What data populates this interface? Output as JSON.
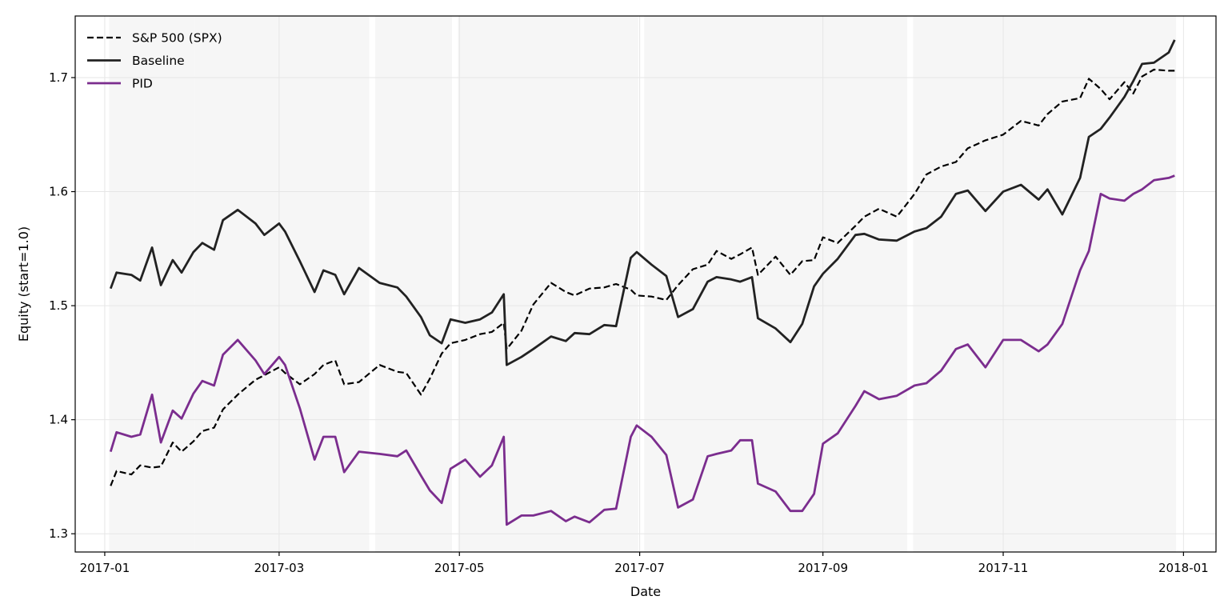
{
  "chart_data": {
    "type": "line",
    "xlabel": "Date",
    "ylabel": "Equity (start=1.0)",
    "x_range": [
      "2016-12-22",
      "2018-01-12"
    ],
    "ylim": [
      1.284,
      1.754
    ],
    "x_ticks": [
      "2017-01-01",
      "2017-03-01",
      "2017-05-01",
      "2017-07-01",
      "2017-09-01",
      "2017-11-01",
      "2018-01-01"
    ],
    "x_tick_labels": [
      "2017-01",
      "2017-03",
      "2017-05",
      "2017-07",
      "2017-09",
      "2017-11",
      "2018-01"
    ],
    "y_ticks": [
      1.3,
      1.4,
      1.5,
      1.6,
      1.7
    ],
    "y_tick_labels": [
      "1.3",
      "1.4",
      "1.5",
      "1.6",
      "1.7"
    ],
    "grid": true,
    "legend_position": "top-left",
    "shaded_month_bands": [
      [
        "2017-01-03",
        "2017-01-31"
      ],
      [
        "2017-02-01",
        "2017-02-28"
      ],
      [
        "2017-03-01",
        "2017-03-31"
      ],
      [
        "2017-04-03",
        "2017-04-28"
      ],
      [
        "2017-05-01",
        "2017-05-31"
      ],
      [
        "2017-06-01",
        "2017-06-30"
      ],
      [
        "2017-07-03",
        "2017-07-31"
      ],
      [
        "2017-08-01",
        "2017-08-31"
      ],
      [
        "2017-09-01",
        "2017-09-29"
      ],
      [
        "2017-10-02",
        "2017-10-31"
      ],
      [
        "2017-11-01",
        "2017-11-30"
      ],
      [
        "2017-12-01",
        "2017-12-29"
      ]
    ],
    "series": [
      {
        "name": "S&P 500 (SPX)",
        "color": "#000000",
        "style": "dashed",
        "x": [
          "2017-01-03",
          "2017-01-05",
          "2017-01-10",
          "2017-01-13",
          "2017-01-17",
          "2017-01-20",
          "2017-01-24",
          "2017-01-27",
          "2017-01-31",
          "2017-02-03",
          "2017-02-07",
          "2017-02-10",
          "2017-02-15",
          "2017-02-21",
          "2017-02-24",
          "2017-03-01",
          "2017-03-03",
          "2017-03-08",
          "2017-03-13",
          "2017-03-16",
          "2017-03-20",
          "2017-03-23",
          "2017-03-28",
          "2017-04-04",
          "2017-04-10",
          "2017-04-13",
          "2017-04-18",
          "2017-04-21",
          "2017-04-25",
          "2017-04-28",
          "2017-05-03",
          "2017-05-08",
          "2017-05-12",
          "2017-05-16",
          "2017-05-17",
          "2017-05-22",
          "2017-05-26",
          "2017-06-01",
          "2017-06-06",
          "2017-06-09",
          "2017-06-14",
          "2017-06-19",
          "2017-06-23",
          "2017-06-28",
          "2017-06-30",
          "2017-07-05",
          "2017-07-10",
          "2017-07-14",
          "2017-07-19",
          "2017-07-24",
          "2017-07-27",
          "2017-08-01",
          "2017-08-04",
          "2017-08-08",
          "2017-08-10",
          "2017-08-16",
          "2017-08-21",
          "2017-08-25",
          "2017-08-29",
          "2017-09-01",
          "2017-09-06",
          "2017-09-12",
          "2017-09-15",
          "2017-09-20",
          "2017-09-26",
          "2017-10-02",
          "2017-10-06",
          "2017-10-11",
          "2017-10-16",
          "2017-10-20",
          "2017-10-26",
          "2017-11-01",
          "2017-11-07",
          "2017-11-13",
          "2017-11-16",
          "2017-11-21",
          "2017-11-27",
          "2017-11-30",
          "2017-12-04",
          "2017-12-07",
          "2017-12-12",
          "2017-12-15",
          "2017-12-18",
          "2017-12-22",
          "2017-12-27",
          "2017-12-29"
        ],
        "values": [
          1.342,
          1.355,
          1.352,
          1.36,
          1.358,
          1.359,
          1.38,
          1.372,
          1.381,
          1.39,
          1.393,
          1.409,
          1.422,
          1.435,
          1.439,
          1.446,
          1.441,
          1.431,
          1.44,
          1.448,
          1.452,
          1.431,
          1.433,
          1.448,
          1.442,
          1.441,
          1.422,
          1.436,
          1.458,
          1.467,
          1.47,
          1.475,
          1.477,
          1.485,
          1.462,
          1.478,
          1.501,
          1.52,
          1.512,
          1.509,
          1.515,
          1.516,
          1.519,
          1.514,
          1.509,
          1.508,
          1.505,
          1.518,
          1.532,
          1.536,
          1.548,
          1.541,
          1.545,
          1.551,
          1.527,
          1.543,
          1.527,
          1.539,
          1.54,
          1.56,
          1.555,
          1.57,
          1.578,
          1.585,
          1.578,
          1.598,
          1.615,
          1.622,
          1.626,
          1.638,
          1.645,
          1.65,
          1.662,
          1.658,
          1.668,
          1.679,
          1.682,
          1.699,
          1.69,
          1.681,
          1.696,
          1.686,
          1.701,
          1.707,
          1.706,
          1.706
        ]
      },
      {
        "name": "Baseline",
        "color": "#222222",
        "style": "solid",
        "x": [
          "2017-01-03",
          "2017-01-05",
          "2017-01-10",
          "2017-01-13",
          "2017-01-17",
          "2017-01-20",
          "2017-01-24",
          "2017-01-27",
          "2017-01-31",
          "2017-02-03",
          "2017-02-07",
          "2017-02-10",
          "2017-02-15",
          "2017-02-21",
          "2017-02-24",
          "2017-03-01",
          "2017-03-03",
          "2017-03-08",
          "2017-03-13",
          "2017-03-16",
          "2017-03-20",
          "2017-03-23",
          "2017-03-28",
          "2017-04-04",
          "2017-04-10",
          "2017-04-13",
          "2017-04-18",
          "2017-04-21",
          "2017-04-25",
          "2017-04-28",
          "2017-05-03",
          "2017-05-08",
          "2017-05-12",
          "2017-05-16",
          "2017-05-17",
          "2017-05-22",
          "2017-05-26",
          "2017-06-01",
          "2017-06-06",
          "2017-06-09",
          "2017-06-14",
          "2017-06-19",
          "2017-06-23",
          "2017-06-28",
          "2017-06-30",
          "2017-07-05",
          "2017-07-10",
          "2017-07-14",
          "2017-07-19",
          "2017-07-24",
          "2017-07-27",
          "2017-08-01",
          "2017-08-04",
          "2017-08-08",
          "2017-08-10",
          "2017-08-16",
          "2017-08-21",
          "2017-08-25",
          "2017-08-29",
          "2017-09-01",
          "2017-09-06",
          "2017-09-12",
          "2017-09-15",
          "2017-09-20",
          "2017-09-26",
          "2017-10-02",
          "2017-10-06",
          "2017-10-11",
          "2017-10-16",
          "2017-10-20",
          "2017-10-26",
          "2017-11-01",
          "2017-11-07",
          "2017-11-13",
          "2017-11-16",
          "2017-11-21",
          "2017-11-27",
          "2017-11-30",
          "2017-12-04",
          "2017-12-07",
          "2017-12-12",
          "2017-12-15",
          "2017-12-18",
          "2017-12-22",
          "2017-12-27",
          "2017-12-29"
        ],
        "values": [
          1.515,
          1.529,
          1.527,
          1.522,
          1.551,
          1.518,
          1.54,
          1.529,
          1.547,
          1.555,
          1.549,
          1.575,
          1.584,
          1.572,
          1.562,
          1.572,
          1.565,
          1.539,
          1.512,
          1.531,
          1.527,
          1.51,
          1.533,
          1.52,
          1.516,
          1.508,
          1.49,
          1.474,
          1.467,
          1.488,
          1.485,
          1.488,
          1.494,
          1.51,
          1.448,
          1.455,
          1.462,
          1.473,
          1.469,
          1.476,
          1.475,
          1.483,
          1.482,
          1.542,
          1.547,
          1.536,
          1.526,
          1.49,
          1.497,
          1.521,
          1.525,
          1.523,
          1.521,
          1.525,
          1.489,
          1.48,
          1.468,
          1.484,
          1.517,
          1.528,
          1.541,
          1.562,
          1.563,
          1.558,
          1.557,
          1.565,
          1.568,
          1.578,
          1.598,
          1.601,
          1.583,
          1.6,
          1.606,
          1.593,
          1.602,
          1.58,
          1.612,
          1.648,
          1.655,
          1.665,
          1.683,
          1.697,
          1.712,
          1.713,
          1.722,
          1.733
        ]
      },
      {
        "name": "PID",
        "color": "#7b2d8e",
        "style": "solid",
        "x": [
          "2017-01-03",
          "2017-01-05",
          "2017-01-10",
          "2017-01-13",
          "2017-01-17",
          "2017-01-20",
          "2017-01-24",
          "2017-01-27",
          "2017-01-31",
          "2017-02-03",
          "2017-02-07",
          "2017-02-10",
          "2017-02-15",
          "2017-02-21",
          "2017-02-24",
          "2017-03-01",
          "2017-03-03",
          "2017-03-08",
          "2017-03-13",
          "2017-03-16",
          "2017-03-20",
          "2017-03-23",
          "2017-03-28",
          "2017-04-04",
          "2017-04-10",
          "2017-04-13",
          "2017-04-18",
          "2017-04-21",
          "2017-04-25",
          "2017-04-28",
          "2017-05-03",
          "2017-05-08",
          "2017-05-12",
          "2017-05-16",
          "2017-05-17",
          "2017-05-22",
          "2017-05-26",
          "2017-06-01",
          "2017-06-06",
          "2017-06-09",
          "2017-06-14",
          "2017-06-19",
          "2017-06-23",
          "2017-06-28",
          "2017-06-30",
          "2017-07-05",
          "2017-07-10",
          "2017-07-14",
          "2017-07-19",
          "2017-07-24",
          "2017-07-27",
          "2017-08-01",
          "2017-08-04",
          "2017-08-08",
          "2017-08-10",
          "2017-08-16",
          "2017-08-21",
          "2017-08-25",
          "2017-08-29",
          "2017-09-01",
          "2017-09-06",
          "2017-09-12",
          "2017-09-15",
          "2017-09-20",
          "2017-09-26",
          "2017-10-02",
          "2017-10-06",
          "2017-10-11",
          "2017-10-16",
          "2017-10-20",
          "2017-10-26",
          "2017-11-01",
          "2017-11-07",
          "2017-11-13",
          "2017-11-16",
          "2017-11-21",
          "2017-11-27",
          "2017-11-30",
          "2017-12-04",
          "2017-12-07",
          "2017-12-12",
          "2017-12-15",
          "2017-12-18",
          "2017-12-22",
          "2017-12-27",
          "2017-12-29"
        ],
        "values": [
          1.372,
          1.389,
          1.385,
          1.387,
          1.422,
          1.38,
          1.408,
          1.401,
          1.423,
          1.434,
          1.43,
          1.457,
          1.47,
          1.452,
          1.44,
          1.455,
          1.448,
          1.41,
          1.365,
          1.385,
          1.385,
          1.354,
          1.372,
          1.37,
          1.368,
          1.373,
          1.351,
          1.338,
          1.327,
          1.357,
          1.365,
          1.35,
          1.36,
          1.385,
          1.308,
          1.316,
          1.316,
          1.32,
          1.311,
          1.315,
          1.31,
          1.321,
          1.322,
          1.385,
          1.395,
          1.385,
          1.369,
          1.323,
          1.33,
          1.368,
          1.37,
          1.373,
          1.382,
          1.382,
          1.344,
          1.337,
          1.32,
          1.32,
          1.335,
          1.379,
          1.388,
          1.412,
          1.425,
          1.418,
          1.421,
          1.43,
          1.432,
          1.443,
          1.462,
          1.466,
          1.446,
          1.47,
          1.47,
          1.46,
          1.466,
          1.484,
          1.531,
          1.548,
          1.598,
          1.594,
          1.592,
          1.598,
          1.602,
          1.61,
          1.612,
          1.614
        ]
      }
    ]
  }
}
